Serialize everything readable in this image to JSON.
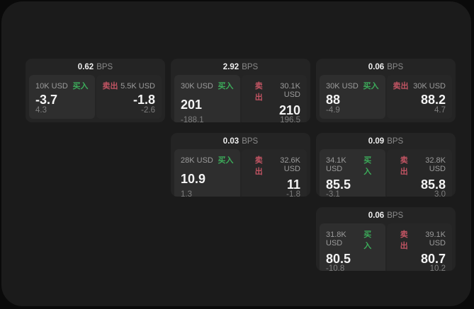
{
  "labels": {
    "unit": "BPS",
    "buy": "买入",
    "sell": "卖出"
  },
  "colors": {
    "buy": "#3cab5a",
    "sell": "#c25463",
    "window_bg": "#1b1b1b",
    "card_bg": "#242424",
    "buy_panel_bg": "#2e2e2e",
    "sell_panel_bg": "#272727"
  },
  "cards": [
    {
      "bps": "0.62",
      "row": 1,
      "col": 1,
      "buy": {
        "amount": "10K USD",
        "price": "-3.7",
        "delta": "4.3"
      },
      "sell": {
        "amount": "5.5K USD",
        "price": "-1.8",
        "delta": "-2.6"
      }
    },
    {
      "bps": "2.92",
      "row": 1,
      "col": 2,
      "buy": {
        "amount": "30K USD",
        "price": "201",
        "delta": "-188.1"
      },
      "sell": {
        "amount": "30.1K USD",
        "price": "210",
        "delta": "196.5"
      }
    },
    {
      "bps": "0.06",
      "row": 1,
      "col": 3,
      "buy": {
        "amount": "30K USD",
        "price": "88",
        "delta": "-4.9"
      },
      "sell": {
        "amount": "30K USD",
        "price": "88.2",
        "delta": "4.7"
      }
    },
    {
      "bps": "0.03",
      "row": 2,
      "col": 2,
      "buy": {
        "amount": "28K USD",
        "price": "10.9",
        "delta": "1.3"
      },
      "sell": {
        "amount": "32.6K USD",
        "price": "11",
        "delta": "-1.8"
      }
    },
    {
      "bps": "0.09",
      "row": 2,
      "col": 3,
      "buy": {
        "amount": "34.1K USD",
        "price": "85.5",
        "delta": "-3.1"
      },
      "sell": {
        "amount": "32.8K USD",
        "price": "85.8",
        "delta": "3.0"
      }
    },
    {
      "bps": "0.06",
      "row": 3,
      "col": 3,
      "buy": {
        "amount": "31.8K USD",
        "price": "80.5",
        "delta": "-10.8"
      },
      "sell": {
        "amount": "39.1K USD",
        "price": "80.7",
        "delta": "10.2"
      }
    }
  ]
}
